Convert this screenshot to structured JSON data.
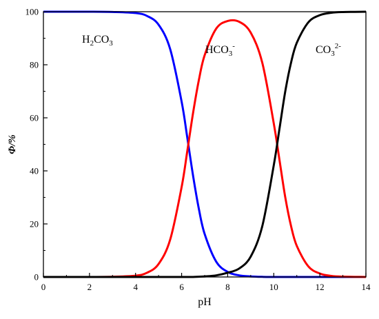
{
  "chart_data": {
    "type": "line",
    "title": "",
    "xlabel": "pH",
    "ylabel": "Φ/%",
    "xlim": [
      0,
      14
    ],
    "ylim": [
      0,
      100
    ],
    "xticks": [
      0,
      2,
      4,
      6,
      8,
      10,
      12,
      14
    ],
    "yticks": [
      0,
      20,
      40,
      60,
      80,
      100
    ],
    "grid": false,
    "legend": "none",
    "x": [
      0,
      1,
      2,
      3,
      4,
      4.5,
      5,
      5.5,
      6,
      6.25,
      6.5,
      6.75,
      7,
      7.5,
      8,
      8.5,
      9,
      9.5,
      10,
      10.25,
      10.5,
      10.75,
      11,
      11.5,
      12,
      12.5,
      13,
      14
    ],
    "series": [
      {
        "name": "H2CO3",
        "label": {
          "main": "H",
          "sub1": "2",
          "mid": "CO",
          "sub2": "3",
          "sup": ""
        },
        "color": "#0000ff",
        "values": [
          100,
          100,
          100,
          99.9,
          99.5,
          98.4,
          95.1,
          86.0,
          66.1,
          52.3,
          38.0,
          25.6,
          16.2,
          5.8,
          1.9,
          0.6,
          0.2,
          0.05,
          0.01,
          0,
          0,
          0,
          0,
          0,
          0,
          0,
          0,
          0
        ]
      },
      {
        "name": "HCO3-",
        "label": {
          "main": "HCO",
          "sub1": "",
          "mid": "",
          "sub2": "3",
          "sup": "-"
        },
        "color": "#ff0000",
        "values": [
          0,
          0,
          0,
          0.1,
          0.5,
          1.6,
          4.9,
          14.0,
          33.9,
          47.7,
          62.0,
          74.3,
          83.6,
          93.6,
          96.5,
          96.2,
          92.1,
          80.8,
          57.9,
          44.0,
          30.0,
          19.2,
          11.7,
          4.0,
          1.3,
          0.4,
          0.13,
          0.01
        ]
      },
      {
        "name": "CO32-",
        "label": {
          "main": "CO",
          "sub1": "",
          "mid": "",
          "sub2": "3",
          "sup": "2-"
        },
        "color": "#000000",
        "values": [
          0,
          0,
          0,
          0,
          0,
          0,
          0,
          0,
          0,
          0,
          0,
          0.1,
          0.2,
          0.6,
          1.6,
          3.2,
          7.7,
          19.1,
          42.1,
          56.0,
          70.0,
          80.8,
          88.3,
          96.0,
          98.7,
          99.6,
          99.87,
          99.99
        ]
      }
    ]
  }
}
